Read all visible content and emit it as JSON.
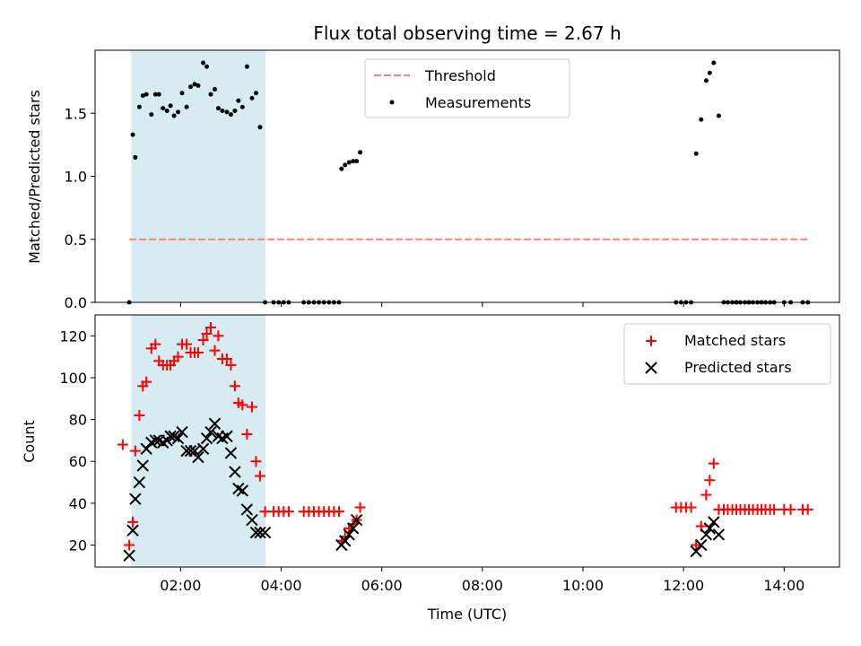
{
  "chart_data": {
    "type": "scatter",
    "title": "Flux total observing time = 2.67 h",
    "xlabel": "Time (UTC)",
    "x_ticks": [
      "02:00",
      "04:00",
      "06:00",
      "08:00",
      "10:00",
      "12:00",
      "14:00"
    ],
    "x_range_hours": [
      0.3,
      15.1
    ],
    "shaded_interval_hours": [
      1.02,
      3.69
    ],
    "shade_color": "#add8e6",
    "panels": [
      {
        "name": "ratio",
        "ylabel": "Matched/Predicted stars",
        "ylim": [
          0,
          2.0
        ],
        "y_ticks": [
          0.0,
          0.5,
          1.0,
          1.5
        ],
        "y_tick_labels": [
          "0.0",
          "0.5",
          "1.0",
          "1.5"
        ],
        "legend": {
          "placement": "top-center",
          "entries": [
            "Threshold",
            "Measurements"
          ]
        },
        "threshold": {
          "name": "Threshold",
          "value": 0.5,
          "x_range": [
            0.98,
            14.5
          ],
          "color": "#ff7f7f",
          "style": "dashed"
        },
        "series": [
          {
            "name": "Measurements",
            "color": "#000000",
            "marker": "dot",
            "x": [
              0.98,
              1.05,
              1.1,
              1.18,
              1.25,
              1.32,
              1.42,
              1.5,
              1.57,
              1.65,
              1.73,
              1.8,
              1.87,
              1.95,
              2.03,
              2.12,
              2.2,
              2.28,
              2.35,
              2.45,
              2.52,
              2.6,
              2.68,
              2.75,
              2.83,
              2.92,
              3.0,
              3.08,
              3.15,
              3.23,
              3.32,
              3.42,
              3.5,
              3.58,
              3.68,
              3.85,
              3.95,
              4.05,
              4.15,
              4.45,
              4.55,
              4.65,
              4.75,
              4.85,
              4.95,
              5.05,
              5.15,
              5.2,
              5.27,
              5.35,
              5.43,
              5.5,
              5.57,
              11.85,
              11.95,
              12.05,
              12.15,
              12.25,
              12.35,
              12.45,
              12.52,
              12.6,
              12.7,
              12.8,
              12.88,
              12.97,
              13.05,
              13.13,
              13.22,
              13.3,
              13.38,
              13.47,
              13.55,
              13.63,
              13.72,
              13.8,
              14.0,
              14.13,
              14.37,
              14.47
            ],
            "y": [
              0,
              1.33,
              1.15,
              1.55,
              1.64,
              1.65,
              1.49,
              1.65,
              1.65,
              1.54,
              1.52,
              1.56,
              1.48,
              1.51,
              1.66,
              1.55,
              1.71,
              1.73,
              1.72,
              1.9,
              1.87,
              1.65,
              1.69,
              1.54,
              1.52,
              1.51,
              1.49,
              1.52,
              1.6,
              1.55,
              1.87,
              1.62,
              1.66,
              1.39,
              0,
              0,
              0,
              0,
              0,
              0,
              0,
              0,
              0,
              0,
              0,
              0,
              0,
              1.06,
              1.09,
              1.11,
              1.12,
              1.12,
              1.19,
              0,
              0,
              0,
              0,
              1.18,
              1.45,
              1.76,
              1.82,
              1.9,
              1.48,
              0,
              0,
              0,
              0,
              0,
              0,
              0,
              0,
              0,
              0,
              0,
              0,
              0,
              0,
              0,
              0,
              0
            ]
          }
        ]
      },
      {
        "name": "counts",
        "ylabel": "Count",
        "ylim": [
          9.5,
          130
        ],
        "y_ticks": [
          20,
          40,
          60,
          80,
          100,
          120
        ],
        "y_tick_labels": [
          "20",
          "40",
          "60",
          "80",
          "100",
          "120"
        ],
        "legend": {
          "placement": "top-right",
          "entries": [
            "Matched stars",
            "Predicted stars"
          ]
        },
        "series": [
          {
            "name": "Matched stars",
            "color": "#ff0000",
            "marker": "plus",
            "x": [
              0.85,
              0.98,
              1.05,
              1.1,
              1.18,
              1.25,
              1.32,
              1.42,
              1.5,
              1.57,
              1.65,
              1.73,
              1.8,
              1.87,
              1.95,
              2.03,
              2.12,
              2.2,
              2.28,
              2.35,
              2.45,
              2.52,
              2.6,
              2.68,
              2.75,
              2.83,
              2.92,
              3.0,
              3.08,
              3.15,
              3.23,
              3.32,
              3.42,
              3.5,
              3.58,
              3.68,
              3.85,
              3.95,
              4.05,
              4.15,
              4.45,
              4.55,
              4.65,
              4.75,
              4.85,
              4.95,
              5.05,
              5.15,
              5.2,
              5.27,
              5.35,
              5.43,
              5.5,
              5.57,
              11.85,
              11.95,
              12.05,
              12.15,
              12.25,
              12.35,
              12.45,
              12.52,
              12.6,
              12.7,
              12.8,
              12.88,
              12.97,
              13.05,
              13.13,
              13.22,
              13.3,
              13.38,
              13.47,
              13.55,
              13.63,
              13.72,
              13.8,
              14.0,
              14.13,
              14.37,
              14.47
            ],
            "y": [
              68,
              20,
              31,
              65,
              82,
              96,
              98,
              114,
              116,
              108,
              106,
              106,
              106,
              108,
              110,
              116,
              116,
              112,
              112,
              112,
              118,
              121,
              124,
              113,
              120,
              109,
              109,
              106,
              96,
              88,
              87,
              73,
              86,
              60,
              53,
              36,
              36,
              36,
              36,
              36,
              36,
              36,
              36,
              36,
              36,
              36,
              36,
              36,
              22,
              24,
              28,
              30,
              32,
              38,
              38,
              38,
              38,
              38,
              20,
              29,
              44,
              51,
              59,
              37,
              37,
              37,
              37,
              37,
              37,
              37,
              37,
              37,
              37,
              37,
              37,
              37,
              37,
              37,
              37,
              37,
              37
            ]
          },
          {
            "name": "Predicted stars",
            "color": "#000000",
            "marker": "x",
            "x": [
              0.98,
              1.05,
              1.1,
              1.18,
              1.25,
              1.32,
              1.42,
              1.5,
              1.57,
              1.65,
              1.73,
              1.8,
              1.87,
              1.95,
              2.03,
              2.12,
              2.2,
              2.28,
              2.35,
              2.45,
              2.52,
              2.6,
              2.68,
              2.75,
              2.83,
              2.92,
              3.0,
              3.08,
              3.15,
              3.23,
              3.32,
              3.42,
              3.5,
              3.58,
              3.68,
              5.2,
              5.27,
              5.35,
              5.43,
              5.5,
              12.25,
              12.35,
              12.45,
              12.52,
              12.6,
              12.7
            ],
            "y": [
              15,
              27,
              42,
              50,
              58,
              66,
              69,
              70,
              70,
              69,
              70,
              72,
              72,
              71,
              74,
              65,
              65,
              65,
              62,
              66,
              71,
              74,
              78,
              72,
              71,
              72,
              64,
              55,
              47,
              46,
              37,
              32,
              26,
              26,
              26,
              20,
              22,
              25,
              28,
              32,
              17,
              20,
              25,
              28,
              31,
              25
            ]
          }
        ]
      }
    ]
  }
}
